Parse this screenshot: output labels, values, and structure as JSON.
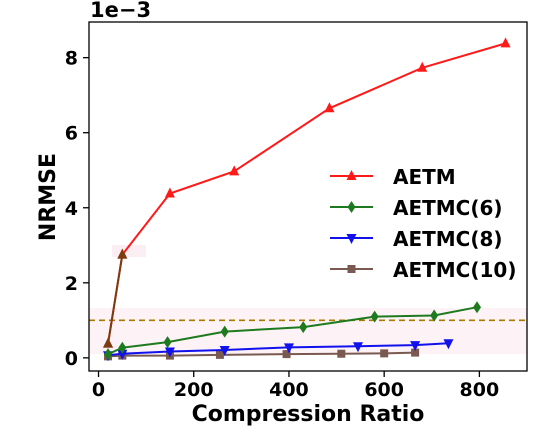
{
  "chart_data": {
    "type": "line",
    "title": "",
    "xlabel": "Compression Ratio",
    "ylabel": "NRMSE",
    "y_offset_label": "1e−3",
    "xlim": [
      -20,
      900
    ],
    "ylim": [
      -0.35,
      8.95
    ],
    "x_ticks": [
      0,
      200,
      400,
      600,
      800
    ],
    "y_ticks": [
      0,
      2,
      4,
      6,
      8
    ],
    "grid": false,
    "legend_position": "center-right",
    "threshold_line": {
      "y": 1.0,
      "color": "#a67c00",
      "style": "dashed"
    },
    "series": [
      {
        "name": "AETM",
        "color": "#ff1a1a",
        "marker": "triangle-up",
        "x": [
          20,
          50,
          150,
          285,
          485,
          680,
          855
        ],
        "y": [
          0.38,
          2.75,
          4.38,
          4.97,
          6.65,
          7.73,
          8.38
        ]
      },
      {
        "name": "AETMC(6)",
        "color": "#1e7a1e",
        "marker": "diamond",
        "x": [
          20,
          50,
          145,
          265,
          430,
          580,
          705,
          795
        ],
        "y": [
          0.1,
          0.27,
          0.42,
          0.7,
          0.82,
          1.1,
          1.13,
          1.35
        ]
      },
      {
        "name": "AETMC(8)",
        "color": "#1111ee",
        "marker": "triangle-down",
        "x": [
          20,
          50,
          150,
          265,
          400,
          545,
          665,
          735
        ],
        "y": [
          0.07,
          0.11,
          0.17,
          0.21,
          0.28,
          0.31,
          0.34,
          0.39
        ]
      },
      {
        "name": "AETMC(10)",
        "color": "#7a5a50",
        "marker": "square",
        "x": [
          20,
          50,
          150,
          255,
          395,
          510,
          600,
          665
        ],
        "y": [
          0.04,
          0.06,
          0.06,
          0.08,
          0.1,
          0.11,
          0.12,
          0.14
        ]
      }
    ],
    "overlay_segments": [
      {
        "x": [
          20,
          50
        ],
        "y": [
          0.38,
          2.75
        ],
        "color": "#7a3d12"
      }
    ]
  }
}
